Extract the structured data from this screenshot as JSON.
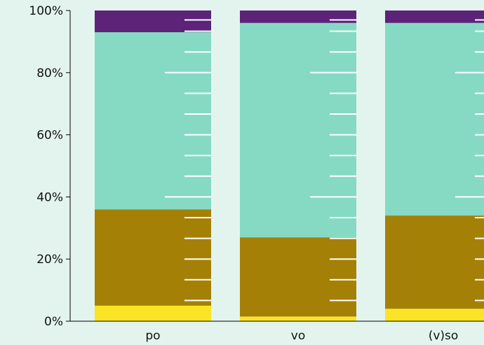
{
  "chart_data": {
    "type": "bar",
    "stacked": true,
    "normalized": true,
    "categories": [
      "po",
      "vo",
      "(v)so"
    ],
    "series": [
      {
        "color": "#fbe426",
        "values": [
          5,
          1.5,
          4
        ]
      },
      {
        "color": "#a58006",
        "values": [
          31,
          25.5,
          30
        ]
      },
      {
        "color": "#86dac4",
        "values": [
          57,
          69,
          62
        ]
      },
      {
        "color": "#5c2379",
        "values": [
          7,
          4,
          4
        ]
      }
    ],
    "yticks": [
      "0%",
      "20%",
      "40%",
      "60%",
      "80%",
      "100%"
    ],
    "ylim": [
      0,
      100
    ],
    "minor_tick_step_percent": 6.6667,
    "xlabel": "",
    "ylabel": "",
    "title": "",
    "grid": false
  }
}
